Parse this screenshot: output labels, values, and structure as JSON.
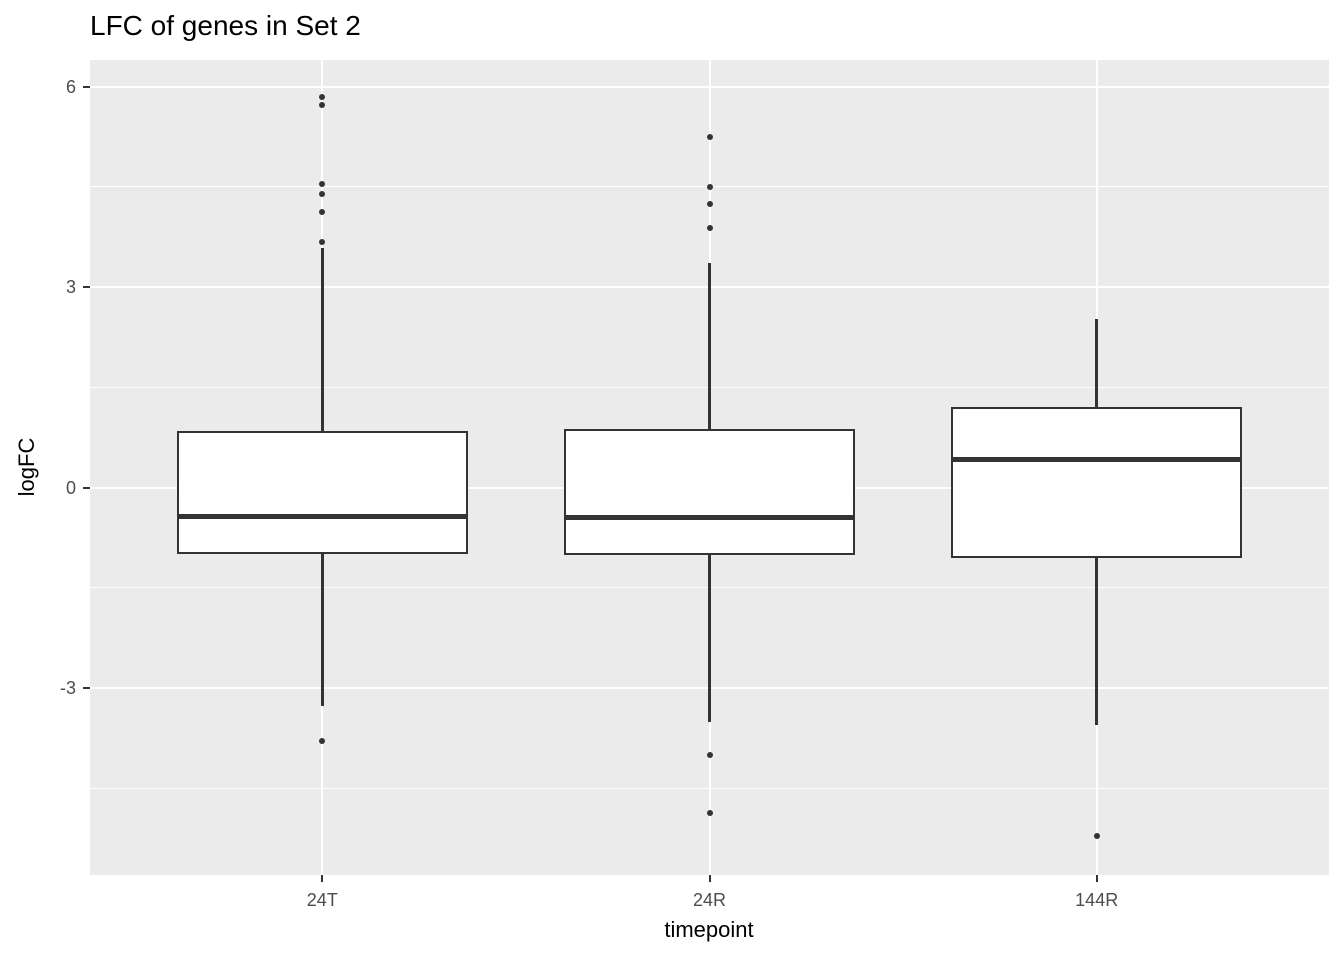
{
  "title": "LFC of genes in Set 2",
  "colors": {
    "panel_background": "#EBEBEB",
    "gridline": "#FFFFFF",
    "box_line": "#333333",
    "box_fill": "#FFFFFF",
    "outlier": "#333333",
    "tick_mark": "#333333",
    "tick_label": "#4D4D4D",
    "axis_title": "#000000",
    "title": "#000000"
  },
  "chart_data": {
    "type": "boxplot",
    "title": "LFC of genes in Set 2",
    "xlabel": "timepoint",
    "ylabel": "logFC",
    "categories": [
      "24T",
      "24R",
      "144R"
    ],
    "ylim": [
      -5.8,
      6.4
    ],
    "y_major_ticks": [
      6,
      3,
      0,
      -3
    ],
    "y_minor_gridlines": [
      4.5,
      1.5,
      -1.5,
      -4.5
    ],
    "grid": "white major+minor horizontal lines, white vertical line at each category, grey panel",
    "legend": "none",
    "box_width_units": 0.75,
    "x_range_units": [
      0.4,
      3.6
    ],
    "series": [
      {
        "category": "24T",
        "whisker_low": -3.27,
        "q1": -1.0,
        "median": -0.43,
        "q3": 0.85,
        "whisker_high": 3.58,
        "outliers": [
          5.84,
          5.73,
          4.55,
          4.4,
          4.13,
          3.68,
          -3.8
        ]
      },
      {
        "category": "24R",
        "whisker_low": -3.51,
        "q1": -1.01,
        "median": -0.45,
        "q3": 0.88,
        "whisker_high": 3.36,
        "outliers": [
          5.25,
          4.5,
          4.25,
          3.88,
          -4.0,
          -4.87
        ]
      },
      {
        "category": "144R",
        "whisker_low": -3.55,
        "q1": -1.06,
        "median": 0.42,
        "q3": 1.2,
        "whisker_high": 2.52,
        "outliers": [
          -5.22
        ]
      }
    ]
  }
}
